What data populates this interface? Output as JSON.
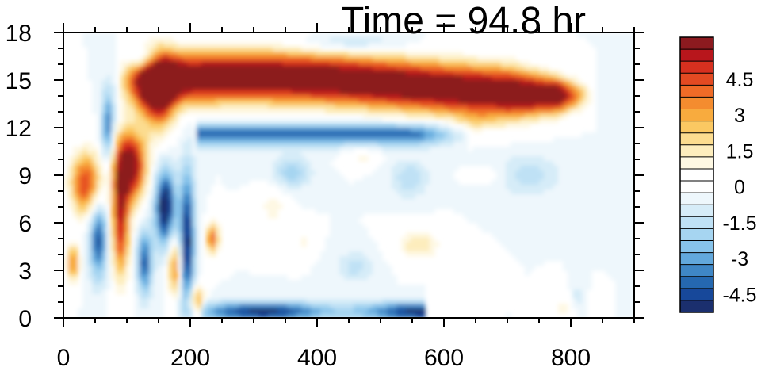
{
  "chart_data": {
    "type": "heatmap",
    "title": "Time = 94.8 hr",
    "xlabel": "",
    "ylabel": "",
    "xlim": [
      0,
      900
    ],
    "ylim": [
      0,
      18
    ],
    "x_ticks": [
      0,
      200,
      400,
      600,
      800
    ],
    "y_ticks": [
      0,
      3,
      6,
      9,
      12,
      15,
      18
    ],
    "colorbar": {
      "range": [
        -6,
        6
      ],
      "step": 0.5,
      "labels": [
        "4.5",
        "3",
        "1.5",
        "0",
        "-1.5",
        "-3",
        "-4.5"
      ],
      "colors": [
        "#8c1a1f",
        "#b8161c",
        "#d7301f",
        "#e34a22",
        "#ef6b27",
        "#f48c2f",
        "#f8ab3e",
        "#fbc862",
        "#fcdc8f",
        "#fdedbd",
        "#fef8e3",
        "#ffffff",
        "#ffffff",
        "#eef7fc",
        "#d6ecf8",
        "#bfe1f5",
        "#a6d5f1",
        "#87c3ea",
        "#62a8dc",
        "#3f87c6",
        "#2568b0",
        "#17489a",
        "#1b2f6e"
      ]
    },
    "features": [
      {
        "name": "upper-positive-band",
        "sign": "positive",
        "x_range": [
          80,
          800
        ],
        "y_center": 15.0,
        "amplitude": 6.0
      },
      {
        "name": "negative-band-below",
        "sign": "negative",
        "x_range": [
          210,
          620
        ],
        "y_center": 11.5,
        "amplitude": -3.5
      },
      {
        "name": "surface-negative-band",
        "sign": "negative",
        "x_range": [
          210,
          560
        ],
        "y_center": 0.5,
        "amplitude": -4.0
      },
      {
        "name": "left-positive-plume",
        "sign": "positive",
        "x_range": [
          70,
          130
        ],
        "y_center": 9.5,
        "amplitude": 6.0
      },
      {
        "name": "left-negative-column",
        "sign": "negative",
        "x_range": [
          150,
          210
        ],
        "y_center": 6.5,
        "amplitude": -5.0
      },
      {
        "name": "mid-positive-patch",
        "sign": "positive",
        "x_range": [
          530,
          610
        ],
        "y_center": 4.5,
        "amplitude": 1.8
      }
    ]
  }
}
